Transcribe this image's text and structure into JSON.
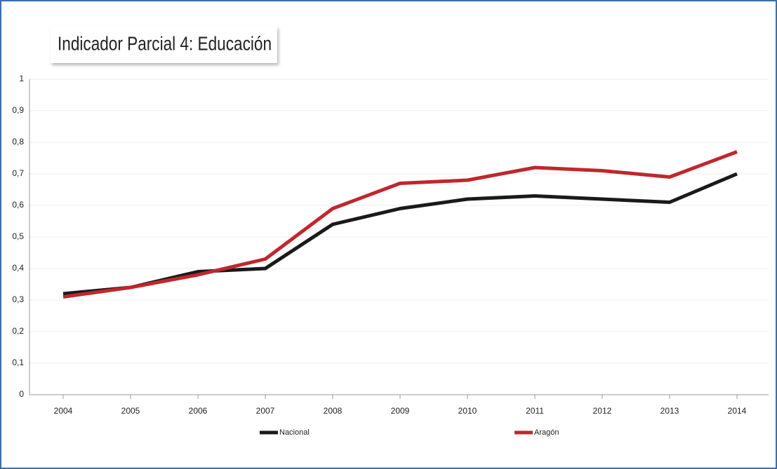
{
  "chart_data": {
    "type": "line",
    "title": "Indicador Parcial 4: Educación",
    "categories": [
      "2004",
      "2005",
      "2006",
      "2007",
      "2008",
      "2009",
      "2010",
      "2011",
      "2012",
      "2013",
      "2014"
    ],
    "series": [
      {
        "name": "Nacional",
        "color": "#1a1a1a",
        "values": [
          0.32,
          0.34,
          0.39,
          0.4,
          0.54,
          0.59,
          0.62,
          0.63,
          0.62,
          0.61,
          0.7
        ]
      },
      {
        "name": "Aragón",
        "color": "#c0272d",
        "values": [
          0.31,
          0.34,
          0.38,
          0.43,
          0.59,
          0.67,
          0.68,
          0.72,
          0.71,
          0.69,
          0.77
        ]
      }
    ],
    "ylim": [
      0,
      1
    ],
    "yticks": [
      0,
      {
        "value": 0.1,
        "label": "0,1"
      },
      {
        "value": 0.2,
        "label": "0,2"
      },
      {
        "value": 0.3,
        "label": "0,3"
      },
      {
        "value": 0.4,
        "label": "0,4"
      },
      {
        "value": 0.5,
        "label": "0,5"
      },
      {
        "value": 0.6,
        "label": "0,6"
      },
      {
        "value": 0.7,
        "label": "0,7"
      },
      {
        "value": 0.8,
        "label": "0,8"
      },
      {
        "value": 0.9,
        "label": "0,9"
      },
      1
    ],
    "grid": true
  }
}
